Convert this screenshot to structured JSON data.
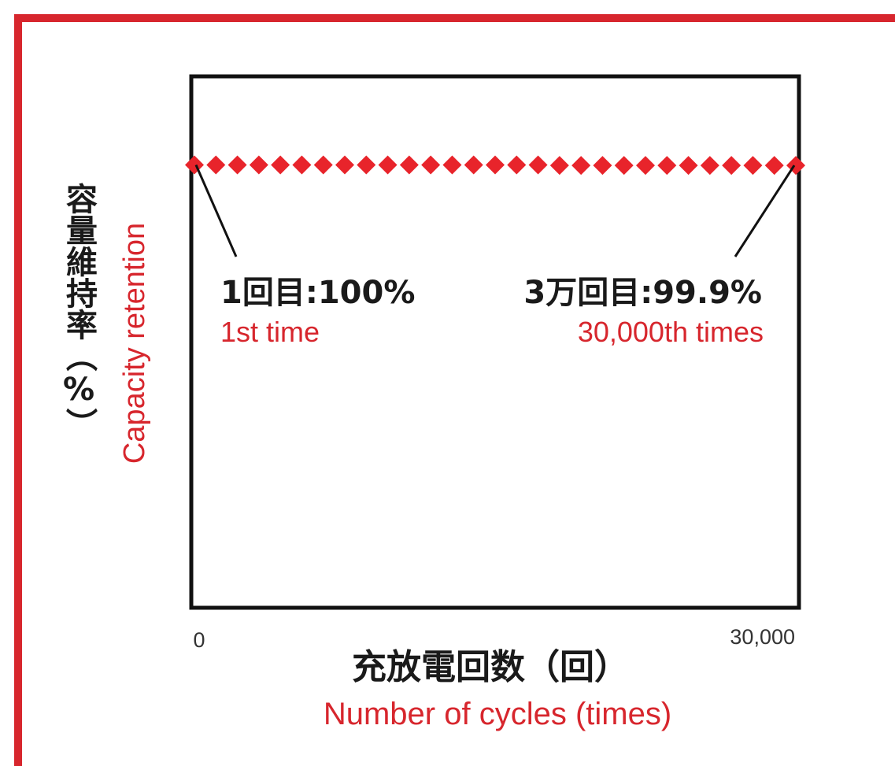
{
  "chart_data": {
    "type": "scatter",
    "x": [
      0,
      1071,
      2143,
      3214,
      4286,
      5357,
      6429,
      7500,
      8571,
      9643,
      10714,
      11786,
      12857,
      13929,
      15000,
      16071,
      17143,
      18214,
      19286,
      20357,
      21429,
      22500,
      23571,
      24643,
      25714,
      26786,
      27857,
      28929,
      30000
    ],
    "y": [
      100,
      100,
      100,
      100,
      100,
      100,
      100,
      100,
      100,
      100,
      100,
      100,
      100,
      100,
      100,
      100,
      100,
      99.9,
      99.9,
      99.9,
      99.9,
      99.9,
      99.9,
      99.9,
      99.9,
      99.9,
      99.9,
      99.9,
      99.9
    ],
    "xlim": [
      0,
      30000
    ],
    "ylim": [
      0,
      120
    ],
    "x_ticks": [
      "0",
      "30,000"
    ],
    "xlabel": "充放電回数（回）",
    "xlabel_en": "Number of cycles (times)",
    "ylabel": "容量維持率（%）",
    "ylabel_en": "Capacity retention",
    "annotations": [
      {
        "label": "1回目:100%",
        "sublabel": "1st time",
        "x": 0,
        "y": 100
      },
      {
        "label": "3万回目:99.9%",
        "sublabel": "30,000th times",
        "x": 30000,
        "y": 99.9
      }
    ],
    "marker": "diamond",
    "colors": {
      "series": "#e8242b",
      "accent": "#d7262d",
      "axis": "#111111"
    },
    "grid": false
  }
}
